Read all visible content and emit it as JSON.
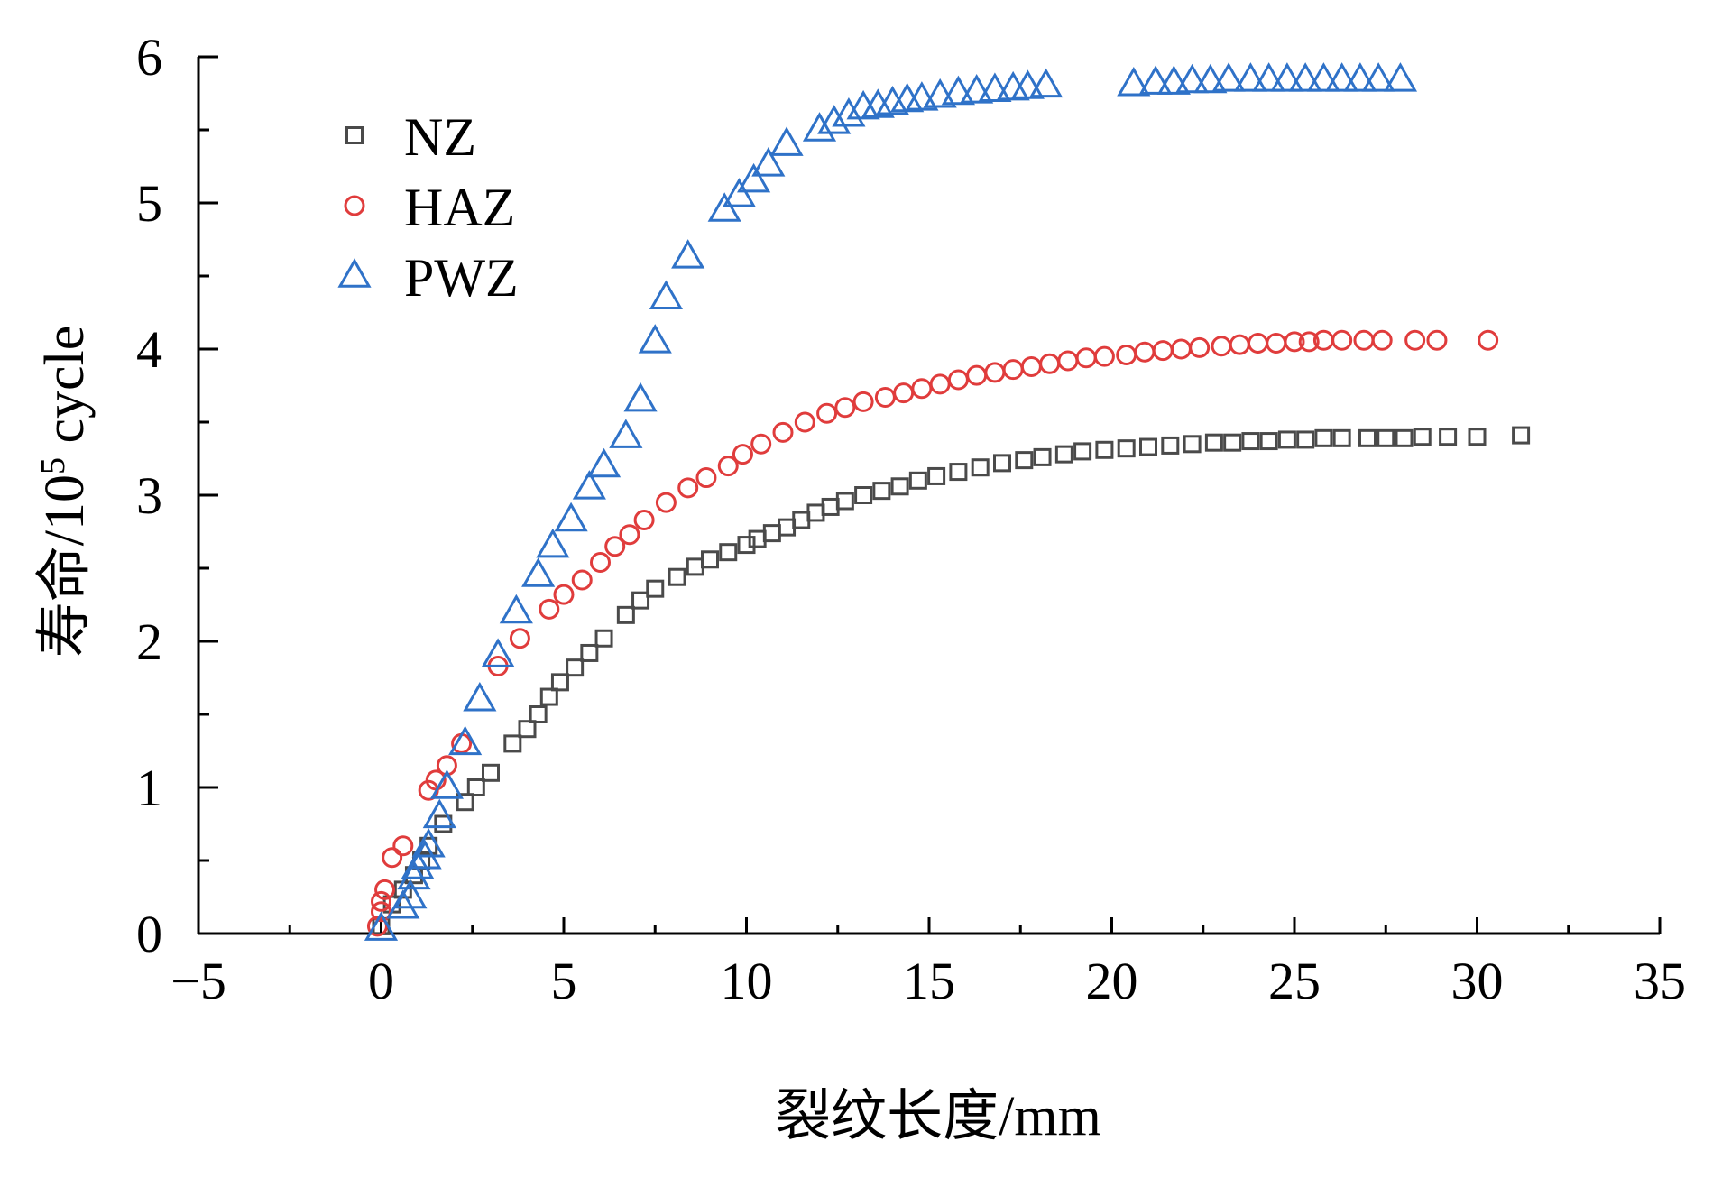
{
  "chart_data": {
    "type": "scatter",
    "xlabel": "裂纹长度/mm",
    "ylabel": {
      "prefix": "寿命/10",
      "sup": "5",
      "suffix": " cycle"
    },
    "xlim": [
      -5,
      35
    ],
    "ylim": [
      0,
      6
    ],
    "x_ticks": [
      -5,
      0,
      5,
      10,
      15,
      20,
      25,
      30,
      35
    ],
    "x_tick_labels": [
      "−5",
      "0",
      "5",
      "10",
      "15",
      "20",
      "25",
      "30",
      "35"
    ],
    "y_ticks": [
      0,
      1,
      2,
      3,
      4,
      5,
      6
    ],
    "y_tick_labels": [
      "0",
      "1",
      "2",
      "3",
      "4",
      "5",
      "6"
    ],
    "grid": false,
    "legend_position": "top-left",
    "series": [
      {
        "name": "NZ",
        "marker": "square",
        "color": "#4a4a4a",
        "points": [
          [
            0.0,
            0.05
          ],
          [
            0.3,
            0.2
          ],
          [
            0.6,
            0.3
          ],
          [
            0.9,
            0.4
          ],
          [
            1.1,
            0.5
          ],
          [
            1.3,
            0.6
          ],
          [
            1.7,
            0.75
          ],
          [
            2.3,
            0.9
          ],
          [
            2.6,
            1.0
          ],
          [
            3.0,
            1.1
          ],
          [
            3.6,
            1.3
          ],
          [
            4.0,
            1.4
          ],
          [
            4.3,
            1.5
          ],
          [
            4.6,
            1.62
          ],
          [
            4.9,
            1.72
          ],
          [
            5.3,
            1.82
          ],
          [
            5.7,
            1.92
          ],
          [
            6.1,
            2.02
          ],
          [
            6.7,
            2.18
          ],
          [
            7.1,
            2.28
          ],
          [
            7.5,
            2.36
          ],
          [
            8.1,
            2.44
          ],
          [
            8.6,
            2.51
          ],
          [
            9.0,
            2.56
          ],
          [
            9.5,
            2.61
          ],
          [
            10.0,
            2.66
          ],
          [
            10.3,
            2.7
          ],
          [
            10.7,
            2.74
          ],
          [
            11.1,
            2.78
          ],
          [
            11.5,
            2.83
          ],
          [
            11.9,
            2.88
          ],
          [
            12.3,
            2.92
          ],
          [
            12.7,
            2.96
          ],
          [
            13.2,
            3.0
          ],
          [
            13.7,
            3.03
          ],
          [
            14.2,
            3.06
          ],
          [
            14.7,
            3.1
          ],
          [
            15.2,
            3.13
          ],
          [
            15.8,
            3.16
          ],
          [
            16.4,
            3.19
          ],
          [
            17.0,
            3.22
          ],
          [
            17.6,
            3.24
          ],
          [
            18.1,
            3.26
          ],
          [
            18.7,
            3.28
          ],
          [
            19.2,
            3.3
          ],
          [
            19.8,
            3.31
          ],
          [
            20.4,
            3.32
          ],
          [
            21.0,
            3.33
          ],
          [
            21.6,
            3.34
          ],
          [
            22.2,
            3.35
          ],
          [
            22.8,
            3.36
          ],
          [
            23.3,
            3.36
          ],
          [
            23.8,
            3.37
          ],
          [
            24.3,
            3.37
          ],
          [
            24.8,
            3.38
          ],
          [
            25.3,
            3.38
          ],
          [
            25.8,
            3.39
          ],
          [
            26.3,
            3.39
          ],
          [
            27.0,
            3.39
          ],
          [
            27.5,
            3.39
          ],
          [
            28.0,
            3.39
          ],
          [
            28.5,
            3.4
          ],
          [
            29.2,
            3.4
          ],
          [
            30.0,
            3.4
          ],
          [
            31.2,
            3.41
          ]
        ]
      },
      {
        "name": "HAZ",
        "marker": "circle",
        "color": "#e03c3c",
        "points": [
          [
            -0.1,
            0.05
          ],
          [
            0.0,
            0.15
          ],
          [
            0.0,
            0.22
          ],
          [
            0.1,
            0.3
          ],
          [
            0.3,
            0.52
          ],
          [
            0.6,
            0.6
          ],
          [
            1.3,
            0.98
          ],
          [
            1.5,
            1.05
          ],
          [
            1.8,
            1.15
          ],
          [
            2.2,
            1.3
          ],
          [
            3.2,
            1.83
          ],
          [
            3.8,
            2.02
          ],
          [
            4.6,
            2.22
          ],
          [
            5.0,
            2.32
          ],
          [
            5.5,
            2.42
          ],
          [
            6.0,
            2.54
          ],
          [
            6.4,
            2.65
          ],
          [
            6.8,
            2.73
          ],
          [
            7.2,
            2.83
          ],
          [
            7.8,
            2.95
          ],
          [
            8.4,
            3.05
          ],
          [
            8.9,
            3.12
          ],
          [
            9.5,
            3.2
          ],
          [
            9.9,
            3.28
          ],
          [
            10.4,
            3.35
          ],
          [
            11.0,
            3.43
          ],
          [
            11.6,
            3.5
          ],
          [
            12.2,
            3.56
          ],
          [
            12.7,
            3.6
          ],
          [
            13.2,
            3.64
          ],
          [
            13.8,
            3.67
          ],
          [
            14.3,
            3.7
          ],
          [
            14.8,
            3.73
          ],
          [
            15.3,
            3.76
          ],
          [
            15.8,
            3.79
          ],
          [
            16.3,
            3.82
          ],
          [
            16.8,
            3.84
          ],
          [
            17.3,
            3.86
          ],
          [
            17.8,
            3.88
          ],
          [
            18.3,
            3.9
          ],
          [
            18.8,
            3.92
          ],
          [
            19.3,
            3.94
          ],
          [
            19.8,
            3.95
          ],
          [
            20.4,
            3.96
          ],
          [
            20.9,
            3.98
          ],
          [
            21.4,
            3.99
          ],
          [
            21.9,
            4.0
          ],
          [
            22.4,
            4.01
          ],
          [
            23.0,
            4.02
          ],
          [
            23.5,
            4.03
          ],
          [
            24.0,
            4.04
          ],
          [
            24.5,
            4.04
          ],
          [
            25.0,
            4.05
          ],
          [
            25.4,
            4.05
          ],
          [
            25.8,
            4.06
          ],
          [
            26.3,
            4.06
          ],
          [
            26.9,
            4.06
          ],
          [
            27.4,
            4.06
          ],
          [
            28.3,
            4.06
          ],
          [
            28.9,
            4.06
          ],
          [
            30.3,
            4.06
          ]
        ]
      },
      {
        "name": "PWZ",
        "marker": "triangle",
        "color": "#2f72c8",
        "points": [
          [
            0.0,
            0.03
          ],
          [
            0.6,
            0.18
          ],
          [
            0.8,
            0.25
          ],
          [
            0.9,
            0.38
          ],
          [
            1.0,
            0.45
          ],
          [
            1.2,
            0.52
          ],
          [
            1.3,
            0.6
          ],
          [
            1.6,
            0.8
          ],
          [
            1.8,
            1.0
          ],
          [
            2.3,
            1.3
          ],
          [
            2.7,
            1.6
          ],
          [
            3.2,
            1.9
          ],
          [
            3.7,
            2.2
          ],
          [
            4.3,
            2.45
          ],
          [
            4.7,
            2.65
          ],
          [
            5.2,
            2.83
          ],
          [
            5.7,
            3.05
          ],
          [
            6.1,
            3.2
          ],
          [
            6.7,
            3.4
          ],
          [
            7.1,
            3.65
          ],
          [
            7.5,
            4.05
          ],
          [
            7.8,
            4.35
          ],
          [
            8.4,
            4.63
          ],
          [
            9.4,
            4.95
          ],
          [
            9.8,
            5.05
          ],
          [
            10.2,
            5.15
          ],
          [
            10.6,
            5.26
          ],
          [
            11.1,
            5.4
          ],
          [
            12.0,
            5.5
          ],
          [
            12.4,
            5.55
          ],
          [
            12.8,
            5.6
          ],
          [
            13.2,
            5.65
          ],
          [
            13.6,
            5.66
          ],
          [
            14.0,
            5.68
          ],
          [
            14.4,
            5.7
          ],
          [
            14.8,
            5.71
          ],
          [
            15.3,
            5.73
          ],
          [
            15.8,
            5.75
          ],
          [
            16.3,
            5.76
          ],
          [
            16.8,
            5.77
          ],
          [
            17.3,
            5.78
          ],
          [
            17.7,
            5.79
          ],
          [
            18.2,
            5.8
          ],
          [
            20.6,
            5.81
          ],
          [
            21.2,
            5.82
          ],
          [
            21.7,
            5.82
          ],
          [
            22.2,
            5.83
          ],
          [
            22.7,
            5.83
          ],
          [
            23.2,
            5.84
          ],
          [
            23.8,
            5.84
          ],
          [
            24.3,
            5.84
          ],
          [
            24.8,
            5.84
          ],
          [
            25.3,
            5.84
          ],
          [
            25.8,
            5.84
          ],
          [
            26.3,
            5.84
          ],
          [
            26.8,
            5.84
          ],
          [
            27.3,
            5.84
          ],
          [
            27.9,
            5.84
          ]
        ]
      }
    ]
  }
}
